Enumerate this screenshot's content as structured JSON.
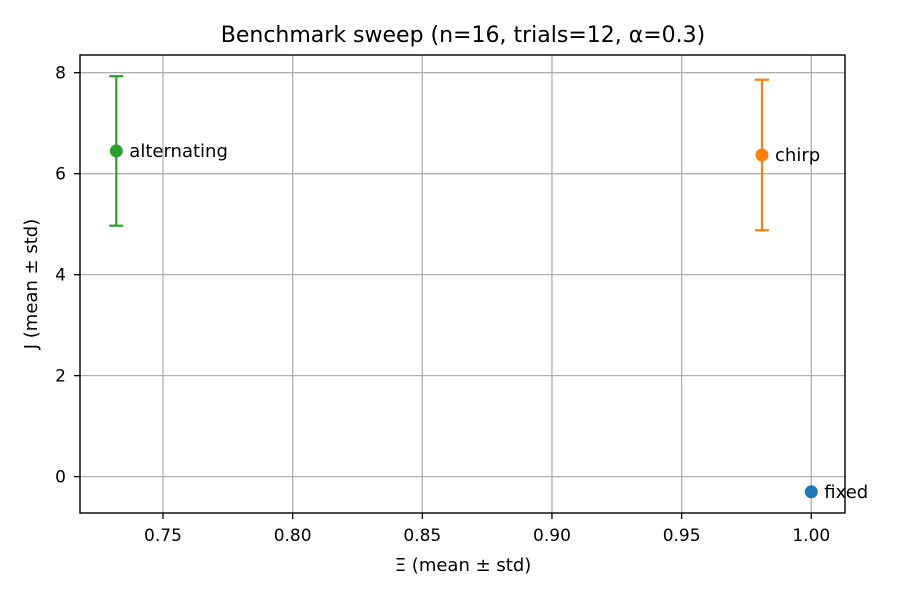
{
  "chart_data": {
    "type": "scatter",
    "title": "Benchmark sweep (n=16, trials=12, α=0.3)",
    "xlabel": "Ξ (mean ± std)",
    "ylabel": "J (mean ± std)",
    "xlim": [
      0.718,
      1.013
    ],
    "ylim": [
      -0.72,
      8.35
    ],
    "xticks": [
      0.75,
      0.8,
      0.85,
      0.9,
      0.95,
      1.0
    ],
    "xtick_labels": [
      "0.75",
      "0.80",
      "0.85",
      "0.90",
      "0.95",
      "1.00"
    ],
    "yticks": [
      0,
      2,
      4,
      6,
      8
    ],
    "ytick_labels": [
      "0",
      "2",
      "4",
      "6",
      "8"
    ],
    "grid": true,
    "points": [
      {
        "label": "fixed",
        "x": 1.0,
        "y": -0.3,
        "yerr": 0.0,
        "color": "#1f77b4"
      },
      {
        "label": "chirp",
        "x": 0.981,
        "y": 6.37,
        "yerr": 1.49,
        "color": "#ff7f0e"
      },
      {
        "label": "alternating",
        "x": 0.732,
        "y": 6.45,
        "yerr": 1.48,
        "color": "#2ca02c"
      }
    ]
  }
}
